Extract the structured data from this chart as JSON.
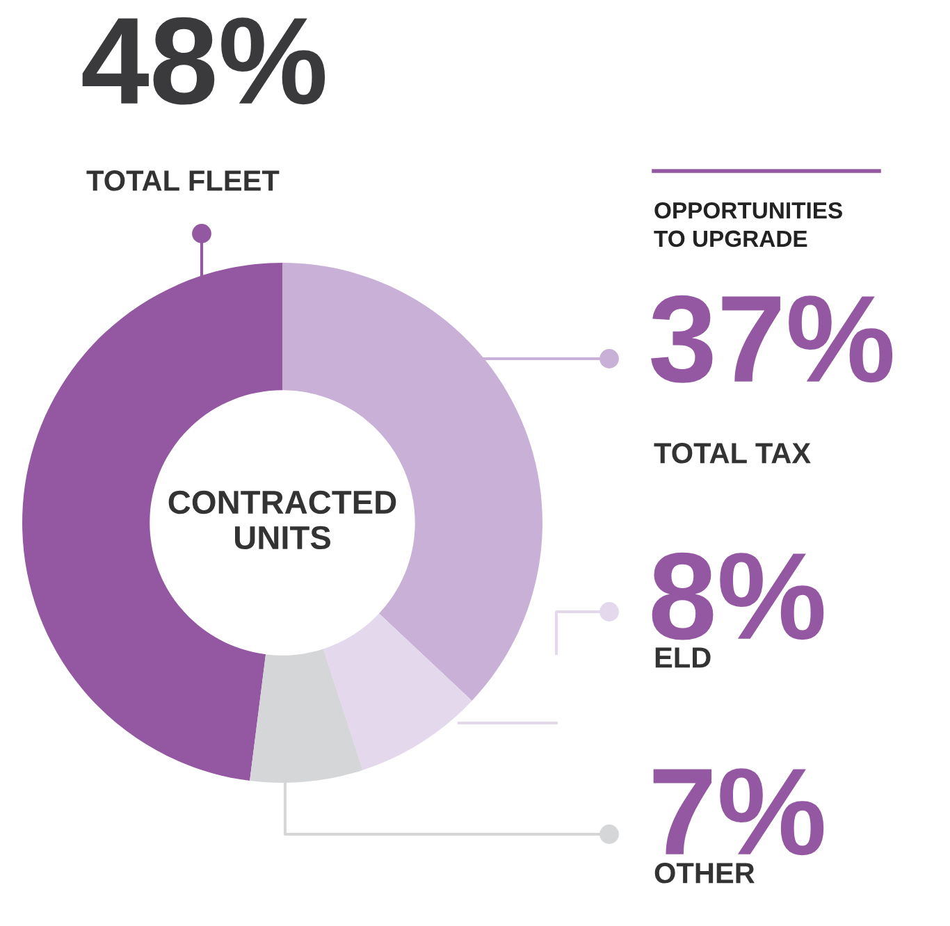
{
  "chart_data": {
    "type": "donut",
    "categories": [
      "TOTAL FLEET",
      "TOTAL TAX",
      "ELD",
      "OTHER"
    ],
    "values": [
      48,
      37,
      8,
      7
    ],
    "colors": [
      "#9457a1",
      "#c8b0d6",
      "#e4d8ec",
      "#d5d6d8"
    ],
    "value_labels": [
      "48%",
      "37%",
      "8%",
      "7%"
    ],
    "annotations": [
      "CONTRACTED\nUNITS",
      "OPPORTUNITIES\nTO UPGRADE"
    ]
  }
}
